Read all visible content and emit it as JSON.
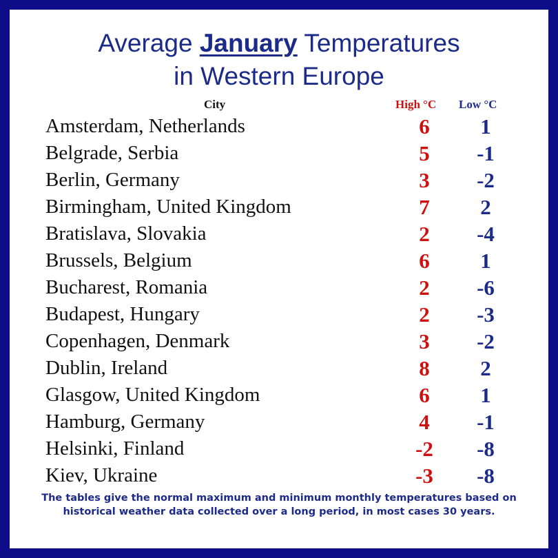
{
  "title": {
    "before": "Average ",
    "emphasis": "January",
    "after": " Temperatures",
    "line2": "in Western Europe"
  },
  "colors": {
    "border": "#0d0d8a",
    "title": "#1c2a8a",
    "high": "#cc1111",
    "low": "#1c2a8a"
  },
  "chart_data": {
    "type": "table",
    "columns": [
      "City",
      "High °C",
      "Low °C"
    ],
    "rows": [
      {
        "city": "Amsterdam, Netherlands",
        "high": "6",
        "low": "1"
      },
      {
        "city": "Belgrade, Serbia",
        "high": "5",
        "low": "-1"
      },
      {
        "city": "Berlin, Germany",
        "high": "3",
        "low": "-2"
      },
      {
        "city": "Birmingham, United Kingdom",
        "high": "7",
        "low": "2"
      },
      {
        "city": "Bratislava, Slovakia",
        "high": "2",
        "low": "-4"
      },
      {
        "city": "Brussels, Belgium",
        "high": "6",
        "low": "1"
      },
      {
        "city": "Bucharest, Romania",
        "high": "2",
        "low": "-6"
      },
      {
        "city": "Budapest, Hungary",
        "high": "2",
        "low": "-3"
      },
      {
        "city": "Copenhagen, Denmark",
        "high": "3",
        "low": "-2"
      },
      {
        "city": "Dublin, Ireland",
        "high": "8",
        "low": "2"
      },
      {
        "city": "Glasgow, United Kingdom",
        "high": "6",
        "low": "1"
      },
      {
        "city": "Hamburg, Germany",
        "high": "4",
        "low": "-1"
      },
      {
        "city": "Helsinki, Finland",
        "high": "-2",
        "low": "-8"
      },
      {
        "city": "Kiev, Ukraine",
        "high": "-3",
        "low": "-8"
      }
    ]
  },
  "footnote": "The tables give the normal maximum and minimum monthly temperatures based on historical weather data collected over a long period, in most cases 30 years."
}
